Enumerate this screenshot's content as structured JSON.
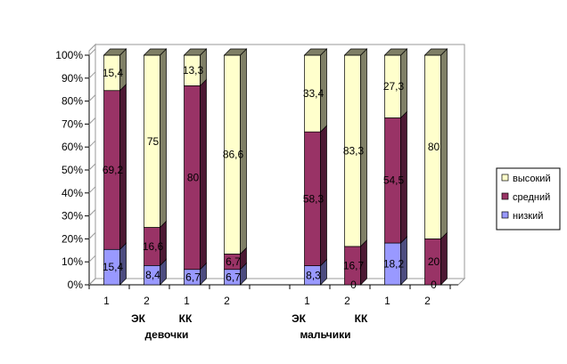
{
  "chart_data": {
    "type": "bar",
    "stacked": "percent",
    "three_d": true,
    "ylim": [
      0,
      100
    ],
    "yticks": [
      "0%",
      "10%",
      "20%",
      "30%",
      "40%",
      "50%",
      "60%",
      "70%",
      "80%",
      "90%",
      "100%"
    ],
    "groups": [
      {
        "label": "девочки",
        "subgroups": [
          {
            "label": "ЭК",
            "categories": [
              "1",
              "2"
            ]
          },
          {
            "label": "КК",
            "categories": [
              "1",
              "2"
            ]
          }
        ]
      },
      {
        "label": "мальчики",
        "subgroups": [
          {
            "label": "ЭК",
            "categories": [
              "1",
              "2"
            ]
          },
          {
            "label": "КК",
            "categories": [
              "1",
              "2"
            ]
          }
        ]
      }
    ],
    "categories": [
      "1",
      "2",
      "1",
      "2",
      "1",
      "2",
      "1",
      "2"
    ],
    "series": [
      {
        "name": "низкий",
        "color": "#9999FF",
        "values": [
          15.4,
          8.4,
          6.7,
          6.7,
          8.3,
          0,
          18.2,
          0
        ],
        "labels": [
          "15,4",
          "8,4",
          "6,7",
          "6,7",
          "8,3",
          "0",
          "18,2",
          "0"
        ]
      },
      {
        "name": "средний",
        "color": "#993366",
        "values": [
          69.2,
          16.6,
          80,
          6.7,
          58.3,
          16.7,
          54.5,
          20
        ],
        "labels": [
          "69,2",
          "16,6",
          "80",
          "6,7",
          "58,3",
          "16,7",
          "54,5",
          "20"
        ]
      },
      {
        "name": "высокий",
        "color": "#FFFFCC",
        "values": [
          15.4,
          75,
          13.3,
          86.6,
          33.4,
          83.3,
          27.3,
          80
        ],
        "labels": [
          "15,4",
          "75",
          "13,3",
          "86,6",
          "33,4",
          "83,3",
          "27,3",
          "80"
        ]
      }
    ],
    "legend": {
      "placement": "right",
      "order": [
        "высокий",
        "средний",
        "низкий"
      ]
    }
  }
}
